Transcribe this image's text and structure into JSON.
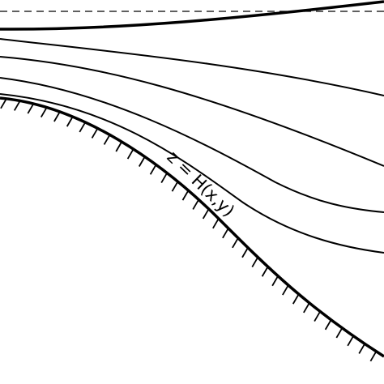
{
  "label": "z = H(x,y)"
}
